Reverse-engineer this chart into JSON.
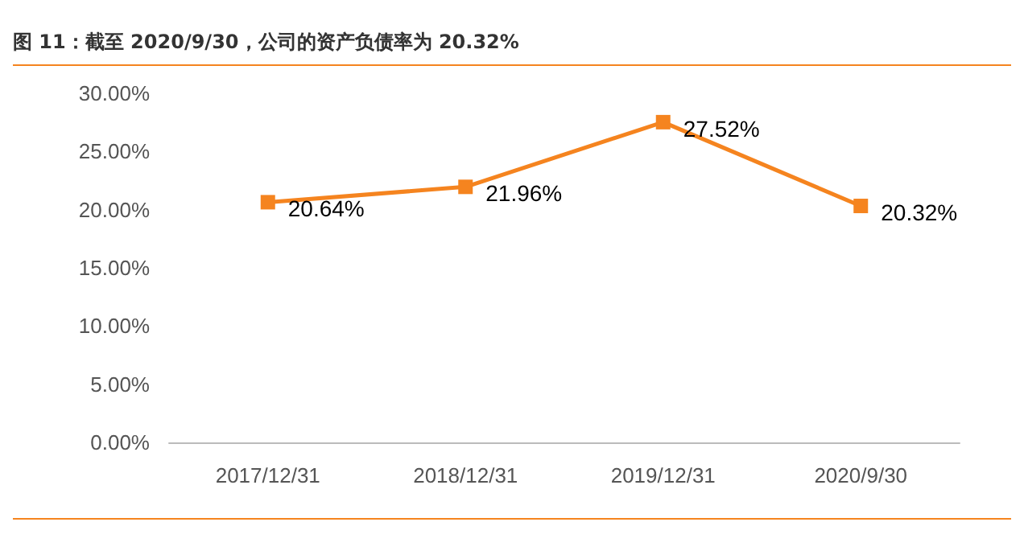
{
  "chart_data": {
    "type": "line",
    "title": "图 11：截至 2020/9/30，公司的资产负债率为 20.32%",
    "categories": [
      "2017/12/31",
      "2018/12/31",
      "2019/12/31",
      "2020/9/30"
    ],
    "series": [
      {
        "color": "#f5841f",
        "values": [
          20.64,
          21.96,
          27.52,
          20.32
        ],
        "value_labels": [
          "20.64%",
          "21.96%",
          "27.52%",
          "20.32%"
        ]
      }
    ],
    "ylim": [
      0,
      30
    ],
    "yticks": [
      {
        "value": 0,
        "label": "0.00%"
      },
      {
        "value": 5,
        "label": "5.00%"
      },
      {
        "value": 10,
        "label": "10.00%"
      },
      {
        "value": 15,
        "label": "15.00%"
      },
      {
        "value": 20,
        "label": "20.00%"
      },
      {
        "value": 25,
        "label": "25.00%"
      },
      {
        "value": 30,
        "label": "30.00%"
      }
    ],
    "grid": false,
    "marker": "square",
    "line_style": "solid"
  }
}
